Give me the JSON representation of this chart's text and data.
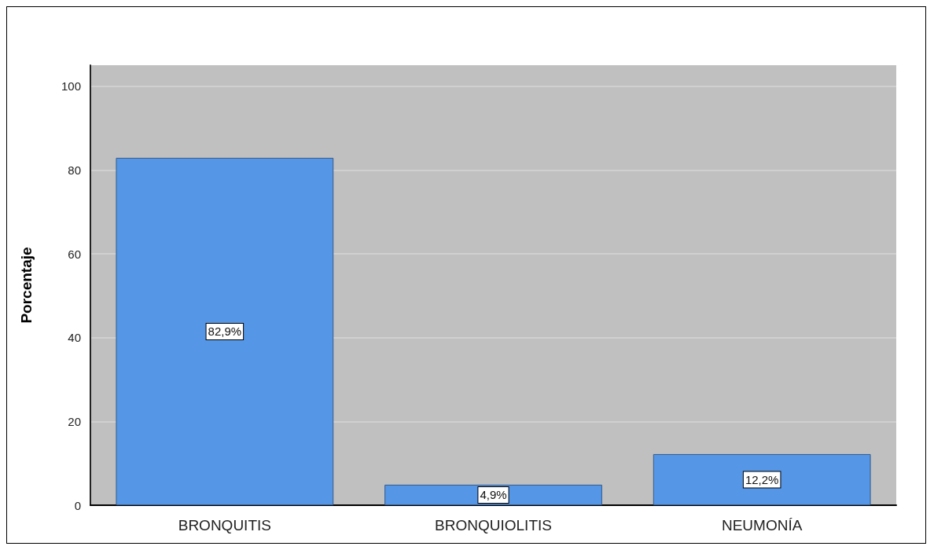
{
  "chart_data": {
    "type": "bar",
    "ylabel": "Porcentaje",
    "categories": [
      "BRONQUITIS",
      "BRONQUIOLITIS",
      "NEUMONÍA"
    ],
    "values": [
      82.9,
      4.9,
      12.2
    ],
    "color": "#5596e6",
    "value_labels": [
      "82,9%",
      "4,9%",
      "12,2%"
    ],
    "ylim": [
      0,
      105
    ],
    "yticks": [
      0,
      20,
      40,
      60,
      80,
      100
    ],
    "grid": "y"
  }
}
